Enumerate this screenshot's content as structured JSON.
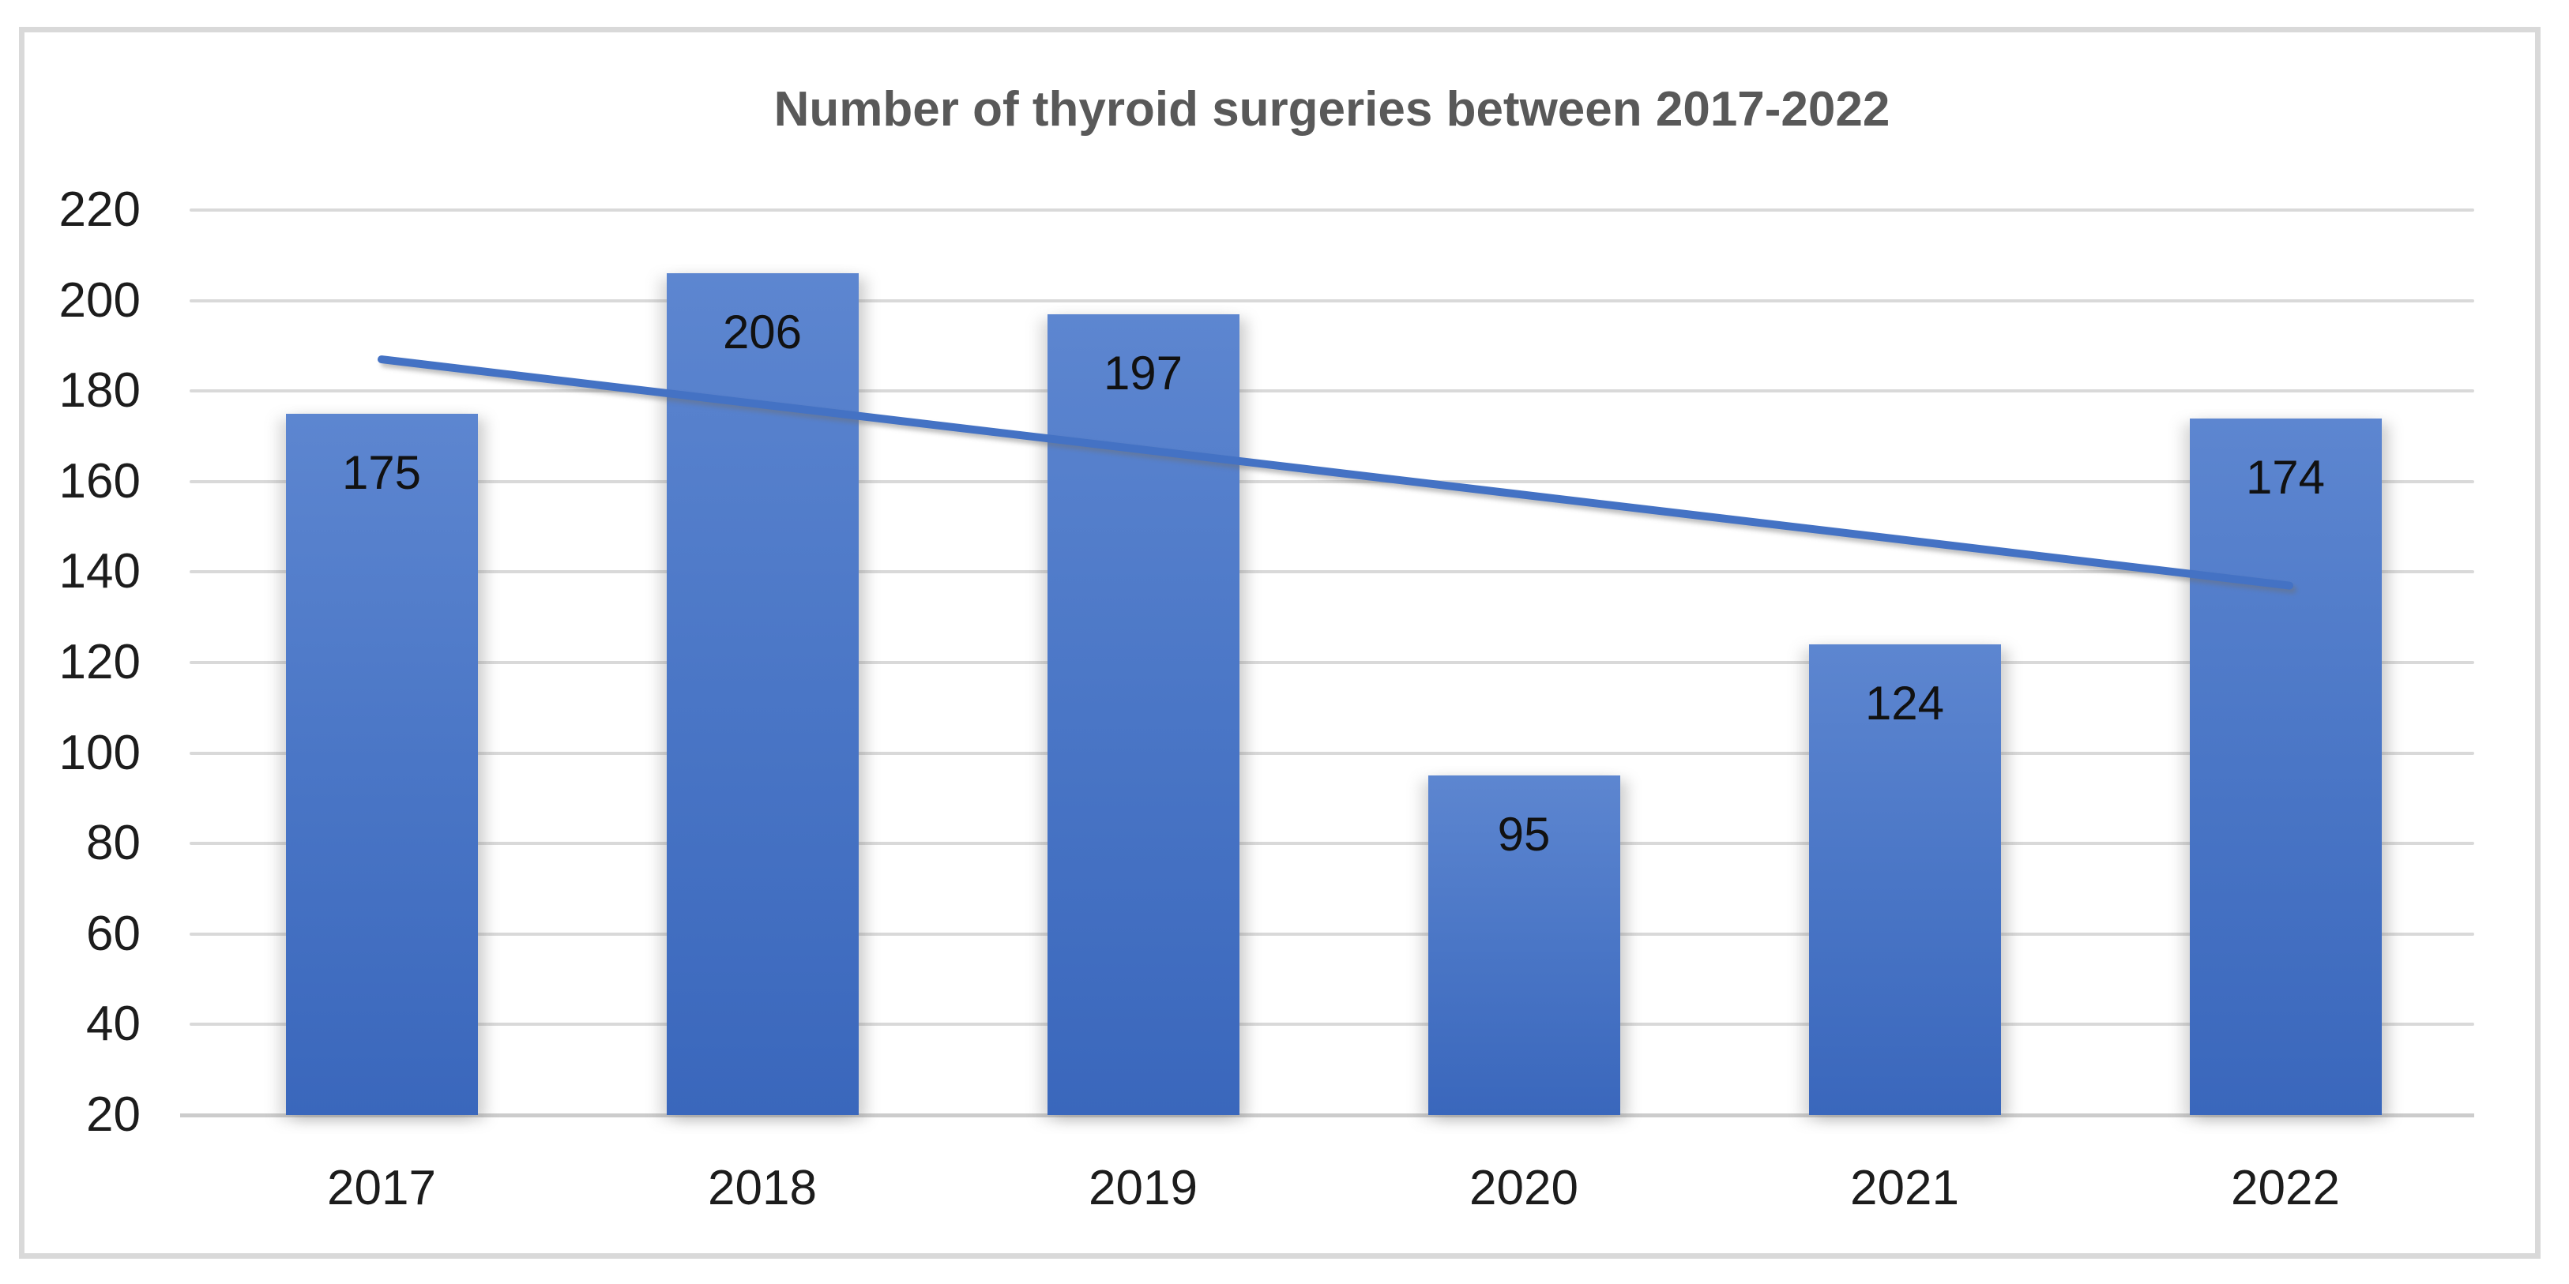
{
  "chart_data": {
    "type": "bar",
    "title": "Number of thyroid surgeries between 2017-2022",
    "categories": [
      "2017",
      "2018",
      "2019",
      "2020",
      "2021",
      "2022"
    ],
    "values": [
      175,
      206,
      197,
      95,
      124,
      174
    ],
    "xlabel": "",
    "ylabel": "",
    "ylim": [
      20,
      220
    ],
    "y_tick_step": 20,
    "y_ticks": [
      20,
      40,
      60,
      80,
      100,
      120,
      140,
      160,
      180,
      200,
      220
    ],
    "grid": true,
    "legend": "none",
    "trendline": {
      "type": "linear",
      "value_at_first_category": 187,
      "value_at_last_category": 137
    },
    "colors": {
      "bar_gradient_top": "#5d86d0",
      "bar_gradient_mid": "#4a76c6",
      "bar_gradient_bottom": "#3a67bc",
      "trendline": "#4472c4",
      "gridline": "#d9d9d9",
      "axis_line": "#cccccc",
      "title": "#595959",
      "tick_label": "#1c1c1c",
      "data_label": "#111111",
      "frame_border": "#d9d9d9",
      "background": "#ffffff"
    }
  }
}
